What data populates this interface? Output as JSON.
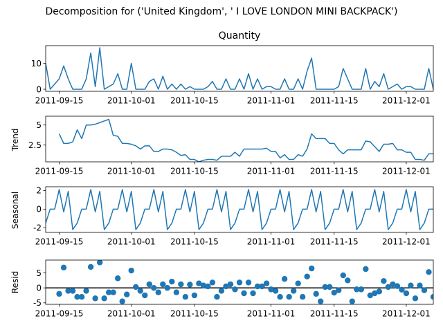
{
  "figure": {
    "title": "Decomposition for ('United Kingdom', ' I LOVE LONDON MINI BACKPACK')"
  },
  "chart_data": [
    {
      "type": "line",
      "panel": "observed",
      "title": "Quantity",
      "ylabel": "",
      "color": "#1f77b4",
      "x_start": "2011-09-12",
      "x_end": "2011-12-07",
      "xticks": [
        "2011-09-15",
        "2011-10-01",
        "2011-10-15",
        "2011-11-01",
        "2011-11-15",
        "2011-12-01"
      ],
      "yticks": [
        0,
        10
      ],
      "ylim": [
        -0.8,
        16.8
      ],
      "series": [
        {
          "x_start": "2011-09-12",
          "step_days": 1,
          "values": [
            10,
            0,
            2,
            4,
            9,
            4,
            0,
            0,
            0,
            4,
            14,
            1,
            16,
            0,
            1,
            2,
            6,
            0,
            0,
            10,
            0,
            0,
            0,
            3,
            4,
            0,
            5,
            0,
            2,
            0,
            2,
            0,
            1,
            0,
            0,
            0,
            1,
            3,
            0,
            0,
            4,
            0,
            0,
            4,
            0,
            6,
            0,
            4,
            0,
            1,
            1,
            0,
            0,
            4,
            0,
            0,
            4,
            0,
            7,
            12,
            0,
            0,
            0,
            0,
            0,
            1,
            8,
            4,
            0,
            0,
            0,
            8,
            0,
            3,
            1,
            6,
            0,
            1,
            2,
            0,
            1,
            1,
            0,
            0,
            0,
            8,
            0,
            6,
            5,
            2
          ]
        }
      ]
    },
    {
      "type": "line",
      "panel": "trend",
      "ylabel": "Trend",
      "color": "#1f77b4",
      "xticks": [
        "2011-09-15",
        "2011-10-01",
        "2011-10-15",
        "2011-11-01",
        "2011-11-15",
        "2011-12-01"
      ],
      "yticks": [
        2.5,
        5.0
      ],
      "ylim": [
        0.4,
        6.1
      ],
      "series": [
        {
          "x_start": "2011-09-15",
          "step_days": 1,
          "values": [
            3.9,
            2.7,
            2.7,
            2.9,
            4.4,
            3.3,
            5.0,
            5.0,
            5.1,
            5.3,
            5.5,
            5.7,
            3.7,
            3.6,
            2.7,
            2.7,
            2.6,
            2.4,
            2.0,
            2.4,
            2.4,
            1.7,
            1.7,
            2.0,
            2.0,
            1.9,
            1.6,
            1.2,
            1.3,
            0.7,
            0.7,
            0.4,
            0.6,
            0.7,
            0.7,
            0.6,
            1.1,
            1.1,
            1.1,
            1.6,
            1.1,
            2.0,
            2.0,
            2.0,
            2.0,
            2.0,
            2.1,
            1.7,
            1.7,
            0.9,
            1.3,
            0.7,
            0.7,
            1.3,
            1.1,
            2.0,
            3.9,
            3.3,
            3.3,
            3.3,
            2.7,
            2.7,
            1.9,
            1.4,
            1.9,
            1.9,
            1.9,
            1.9,
            3.0,
            2.9,
            2.3,
            1.7,
            2.6,
            2.6,
            2.7,
            1.9,
            1.9,
            1.6,
            1.6,
            0.7,
            0.7,
            0.6,
            1.4,
            1.4,
            2.0,
            2.7,
            3.0
          ]
        }
      ]
    },
    {
      "type": "line",
      "panel": "seasonal",
      "ylabel": "Seasonal",
      "color": "#1f77b4",
      "xticks": [
        "2011-09-15",
        "2011-10-01",
        "2011-10-15",
        "2011-11-01",
        "2011-11-15",
        "2011-12-01"
      ],
      "yticks": [
        -2,
        0,
        2
      ],
      "ylim": [
        -2.5,
        2.4
      ],
      "series": [
        {
          "x_start": "2011-09-12",
          "step_days": 1,
          "pattern": [
            0.0,
            0.0,
            2.1,
            -0.3,
            1.9,
            -2.2,
            -1.5
          ],
          "values": [
            -1.5,
            0.0,
            0.0,
            2.1,
            -0.3,
            1.9,
            -2.2,
            -1.5,
            0.0,
            0.0,
            2.1,
            -0.3,
            1.9,
            -2.2,
            -1.5,
            0.0,
            0.0,
            2.1,
            -0.3,
            1.9,
            -2.2,
            -1.5,
            0.0,
            0.0,
            2.1,
            -0.3,
            1.9,
            -2.2,
            -1.5,
            0.0,
            0.0,
            2.1,
            -0.3,
            1.9,
            -2.2,
            -1.5,
            0.0,
            0.0,
            2.1,
            -0.3,
            1.9,
            -2.2,
            -1.5,
            0.0,
            0.0,
            2.1,
            -0.3,
            1.9,
            -2.2,
            -1.5,
            0.0,
            0.0,
            2.1,
            -0.3,
            1.9,
            -2.2,
            -1.5,
            0.0,
            0.0,
            2.1,
            -0.3,
            1.9,
            -2.2,
            -1.5,
            0.0,
            0.0,
            2.1,
            -0.3,
            1.9,
            -2.2,
            -1.5,
            0.0,
            0.0,
            2.1,
            -0.3,
            1.9,
            -2.2,
            -1.5,
            0.0,
            0.0,
            2.1,
            -0.3,
            1.9,
            -2.2,
            -1.5,
            0.0,
            0.0,
            2.1,
            -0.3,
            1.9
          ]
        }
      ]
    },
    {
      "type": "scatter",
      "panel": "resid",
      "ylabel": "Resid",
      "color": "#1f77b4",
      "xticks": [
        "2011-09-15",
        "2011-10-01",
        "2011-10-15",
        "2011-11-01",
        "2011-11-15",
        "2011-12-01"
      ],
      "yticks": [
        -5,
        0,
        5
      ],
      "ylim": [
        -5.5,
        9.3
      ],
      "reference_line": 0,
      "series": [
        {
          "x_start": "2011-09-15",
          "step_days": 1,
          "values": [
            -2,
            6.8,
            -1,
            -1,
            -3,
            -3,
            -1,
            7,
            -3.5,
            8.5,
            -3.5,
            -1.5,
            -1.5,
            3.2,
            -4.5,
            -2.2,
            5.8,
            0.3,
            -1,
            -2.5,
            1.2,
            0,
            -1.5,
            1.2,
            0,
            2.1,
            -1.5,
            1.2,
            -3,
            1.1,
            -2.5,
            1.5,
            0.8,
            0.5,
            1.8,
            -3,
            -1,
            0.5,
            1.2,
            -0.5,
            1.8,
            -1.8,
            1.8,
            -1.8,
            0.5,
            0.5,
            1.5,
            -0.5,
            -1,
            -3,
            3,
            -3,
            -1,
            1.5,
            -3,
            3.8,
            6.5,
            -2,
            -4.5,
            0.3,
            0.3,
            -1.6,
            -0.8,
            4.2,
            2.5,
            -4.5,
            -0.5,
            -0.5,
            6.3,
            -2.5,
            -1.8,
            -1.2,
            2.3,
            0.3,
            1.2,
            0.6,
            -0.6,
            -1.8,
            0.8,
            -3.5,
            0.8,
            -0.8,
            5.3,
            -3
          ]
        }
      ]
    }
  ]
}
